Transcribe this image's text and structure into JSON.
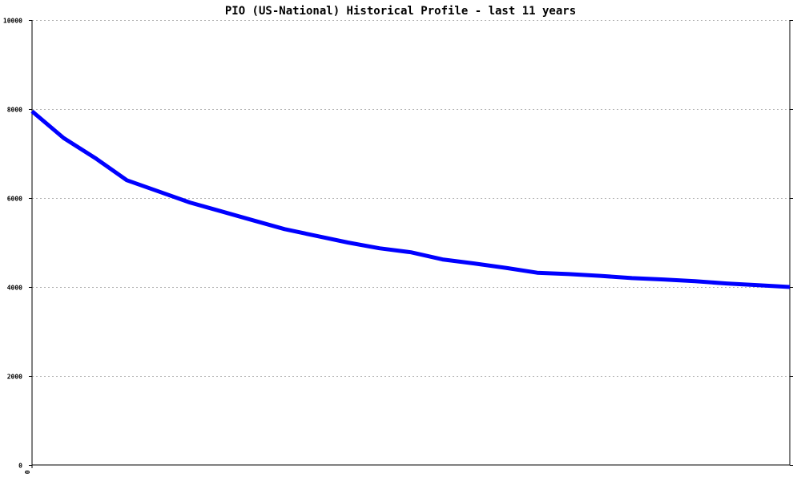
{
  "chart_data": {
    "type": "line",
    "title": "PIO (US-National) Historical Profile - last 11 years",
    "xlabel": "",
    "ylabel": "",
    "ylim": [
      0,
      10000
    ],
    "yticks": [
      0,
      2000,
      4000,
      6000,
      8000,
      10000
    ],
    "xticks": [
      {
        "value": 0,
        "label": "0"
      }
    ],
    "grid": true,
    "legend": "none",
    "series": [
      {
        "color": "#0000ff",
        "x": [
          0,
          1,
          2,
          3,
          4,
          5,
          6,
          7,
          8,
          9,
          10,
          11,
          12,
          13,
          14,
          15,
          16,
          17,
          18,
          19,
          20,
          21,
          22,
          23,
          24
        ],
        "y": [
          7950,
          7350,
          6900,
          6400,
          6150,
          5900,
          5700,
          5500,
          5300,
          5150,
          5000,
          4870,
          4780,
          4620,
          4530,
          4430,
          4320,
          4290,
          4250,
          4200,
          4170,
          4130,
          4080,
          4040,
          4000
        ]
      }
    ]
  }
}
